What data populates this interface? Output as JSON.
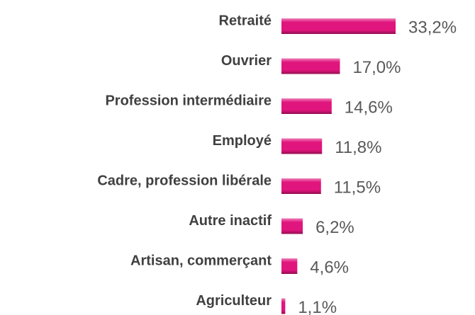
{
  "chart_data": {
    "type": "bar",
    "orientation": "horizontal",
    "categories": [
      "Retraité",
      "Ouvrier",
      "Profession intermédiaire",
      "Employé",
      "Cadre, profession libérale",
      "Autre inactif",
      "Artisan, commerçant",
      "Agriculteur"
    ],
    "values": [
      33.2,
      17.0,
      14.6,
      11.8,
      11.5,
      6.2,
      4.6,
      1.1
    ],
    "value_labels": [
      "33,2%",
      "17,0%",
      "14,6%",
      "11,8%",
      "11,5%",
      "6,2%",
      "4,6%",
      "1,1%"
    ],
    "color": "#e0157d"
  }
}
